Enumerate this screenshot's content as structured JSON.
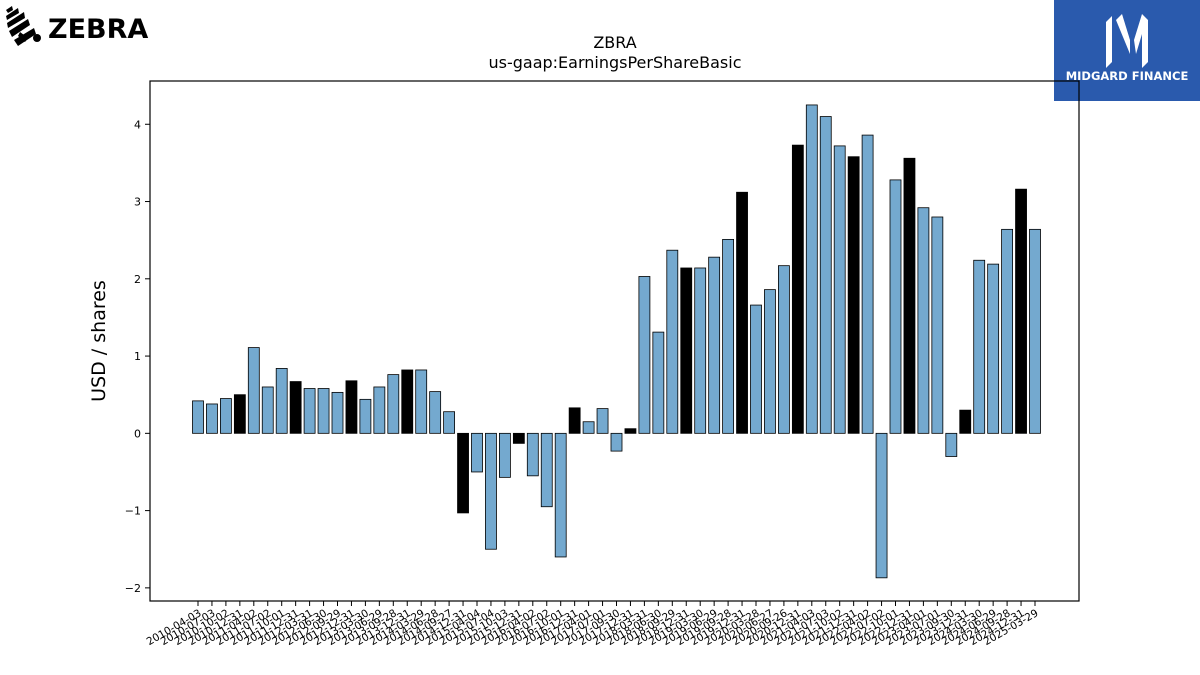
{
  "logos": {
    "zebra": {
      "text": "ZEBRA",
      "icon": "zebra-stripes-icon"
    },
    "midgard": {
      "text": "MIDGARD FINANCE",
      "icon": "midgard-m-icon",
      "bg_color": "#2a5aad"
    }
  },
  "colors": {
    "quarterly": "#74a9cf",
    "annual": "#000000",
    "edge": "#000000"
  },
  "chart_data": {
    "type": "bar",
    "title": "ZBRA",
    "subtitle": "us-gaap:EarningsPerShareBasic",
    "ylabel": "USD / shares",
    "xlabel": "",
    "ylim": [
      -2.17,
      4.56
    ],
    "yticks": [
      -2,
      -1,
      0,
      1,
      2,
      3,
      4
    ],
    "grid": false,
    "categories": [
      "2010-04-03",
      "2010-07-03",
      "2010-10-02",
      "2010-12-31",
      "2011-04-02",
      "2011-07-02",
      "2011-10-01",
      "2011-12-31",
      "2012-03-31",
      "2012-06-30",
      "2012-09-29",
      "2012-12-31",
      "2013-03-30",
      "2013-06-29",
      "2013-09-28",
      "2013-12-31",
      "2014-03-29",
      "2014-06-28",
      "2014-09-27",
      "2014-12-31",
      "2015-04-04",
      "2015-07-04",
      "2015-10-03",
      "2015-12-31",
      "2016-04-02",
      "2016-07-02",
      "2016-10-01",
      "2016-12-31",
      "2017-04-01",
      "2017-07-01",
      "2017-09-30",
      "2017-12-31",
      "2018-03-31",
      "2018-06-30",
      "2018-09-29",
      "2018-12-31",
      "2019-03-30",
      "2019-06-29",
      "2019-09-28",
      "2019-12-31",
      "2020-03-28",
      "2020-06-27",
      "2020-09-26",
      "2020-12-31",
      "2021-04-03",
      "2021-07-03",
      "2021-10-02",
      "2021-12-31",
      "2022-04-02",
      "2022-07-02",
      "2022-10-01",
      "2022-12-31",
      "2023-04-01",
      "2023-07-01",
      "2023-09-30",
      "2023-12-31",
      "2024-03-30",
      "2024-06-29",
      "2024-09-28",
      "2024-12-31",
      "2025-03-29"
    ],
    "values": [
      0.42,
      0.38,
      0.45,
      0.5,
      1.11,
      0.6,
      0.84,
      0.67,
      0.58,
      0.58,
      0.53,
      0.68,
      0.44,
      0.6,
      0.76,
      0.82,
      0.82,
      0.54,
      0.28,
      -1.03,
      -0.5,
      -1.5,
      -0.57,
      -0.13,
      -0.55,
      -0.95,
      -1.6,
      0.33,
      0.15,
      0.32,
      -0.23,
      0.06,
      2.03,
      1.31,
      2.37,
      2.14,
      2.14,
      2.28,
      2.51,
      3.12,
      1.66,
      1.86,
      2.17,
      3.73,
      4.25,
      4.1,
      3.72,
      3.58,
      3.86,
      -1.87,
      3.28,
      3.56,
      2.92,
      2.8,
      -0.3,
      0.3,
      2.24,
      2.19,
      2.64,
      3.16,
      2.64
    ],
    "annual": [
      false,
      false,
      false,
      true,
      false,
      false,
      false,
      true,
      false,
      false,
      false,
      true,
      false,
      false,
      false,
      true,
      false,
      false,
      false,
      true,
      false,
      false,
      false,
      true,
      false,
      false,
      false,
      true,
      false,
      false,
      false,
      true,
      false,
      false,
      false,
      true,
      false,
      false,
      false,
      true,
      false,
      false,
      false,
      true,
      false,
      false,
      false,
      true,
      false,
      false,
      false,
      true,
      false,
      false,
      false,
      true,
      false,
      false,
      false,
      true,
      false
    ]
  }
}
